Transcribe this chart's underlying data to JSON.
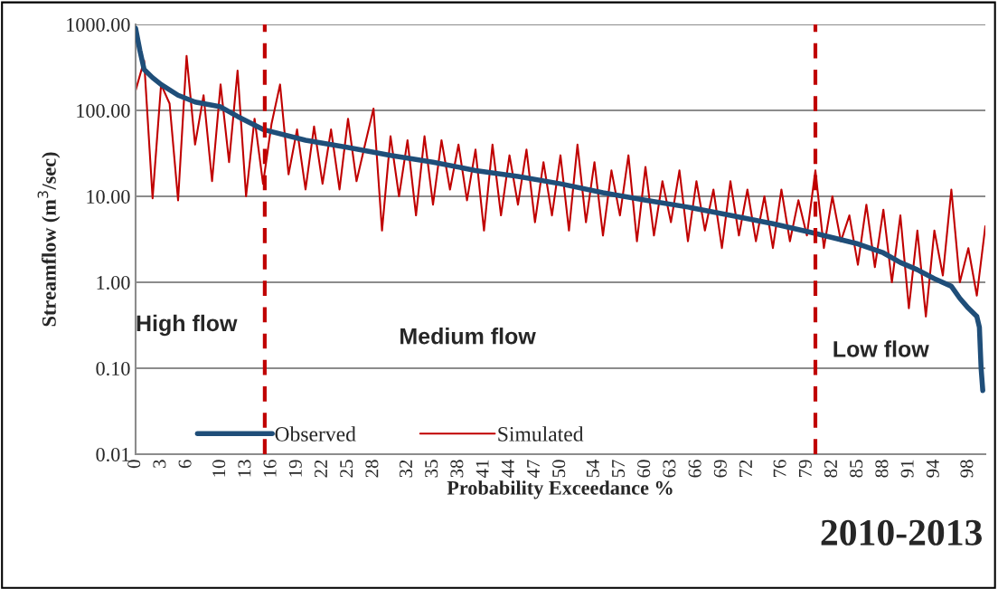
{
  "chart_data": {
    "type": "line",
    "xlabel": "Probability Exceedance %",
    "ylabel": "Streamflow (m$^{3}$/sec)",
    "log": "y",
    "grid": "y",
    "legend": "bottom",
    "xlim": [
      0,
      100
    ],
    "xticks": [
      0,
      3,
      6,
      10,
      13,
      16,
      19,
      22,
      25,
      28,
      32,
      35,
      38,
      41,
      44,
      47,
      50,
      54,
      57,
      60,
      63,
      66,
      69,
      72,
      76,
      79,
      82,
      85,
      88,
      91,
      94,
      98
    ],
    "ylim": [
      0.01,
      1000
    ],
    "yticks": [
      {
        "value": 0.01,
        "label": "0.01"
      },
      {
        "value": 0.1,
        "label": "0.10"
      },
      {
        "value": 1,
        "label": "1.00"
      },
      {
        "value": 10,
        "label": "10.00"
      },
      {
        "value": 100,
        "label": "100.00"
      },
      {
        "value": 1000,
        "label": "1000.00"
      }
    ],
    "series": [
      {
        "name": "Observed",
        "color": "#1f4e79",
        "x": [
          0,
          0.5,
          1,
          2,
          3,
          5,
          7,
          10,
          12,
          15,
          20,
          25,
          30,
          35,
          40,
          45,
          50,
          55,
          60,
          65,
          70,
          75,
          80,
          85,
          88,
          90,
          92,
          94,
          96,
          97,
          98,
          99,
          99.3,
          99.5,
          99.7
        ],
        "values": [
          900,
          500,
          300,
          240,
          200,
          150,
          125,
          110,
          85,
          60,
          45,
          37,
          30,
          25,
          20,
          17,
          14,
          11,
          9,
          7.5,
          6,
          4.8,
          3.7,
          2.8,
          2.2,
          1.7,
          1.4,
          1.1,
          0.9,
          0.65,
          0.5,
          0.4,
          0.3,
          0.1,
          0.055
        ]
      },
      {
        "name": "Simulated",
        "color": "#c00000",
        "x": [
          0,
          1,
          2,
          3,
          4,
          5,
          6,
          7,
          8,
          9,
          10,
          11,
          12,
          13,
          14,
          15,
          16,
          17,
          18,
          19,
          20,
          21,
          22,
          23,
          24,
          25,
          26,
          27,
          28,
          29,
          30,
          31,
          32,
          33,
          34,
          35,
          36,
          37,
          38,
          39,
          40,
          41,
          42,
          43,
          44,
          45,
          46,
          47,
          48,
          49,
          50,
          51,
          52,
          53,
          54,
          55,
          56,
          57,
          58,
          59,
          60,
          61,
          62,
          63,
          64,
          65,
          66,
          67,
          68,
          69,
          70,
          71,
          72,
          73,
          74,
          75,
          76,
          77,
          78,
          79,
          80,
          81,
          82,
          83,
          84,
          85,
          86,
          87,
          88,
          89,
          90,
          91,
          92,
          93,
          94,
          95,
          96,
          97,
          98,
          99,
          100
        ],
        "values": [
          170,
          380,
          9.5,
          200,
          120,
          9,
          430,
          40,
          150,
          15,
          200,
          25,
          290,
          10,
          80,
          14,
          70,
          200,
          18,
          60,
          12,
          65,
          14,
          60,
          12,
          80,
          15,
          40,
          105,
          4,
          50,
          10,
          45,
          6,
          50,
          8,
          45,
          12,
          40,
          9,
          35,
          4,
          40,
          6,
          30,
          8,
          35,
          5,
          25,
          6,
          30,
          4,
          40,
          5,
          25,
          3.5,
          20,
          6,
          30,
          3,
          22,
          3.5,
          15,
          5,
          20,
          3,
          15,
          4,
          12,
          2.5,
          15,
          3.5,
          12,
          3,
          10,
          2.5,
          12,
          3,
          9,
          3.5,
          20,
          2.5,
          10,
          3,
          6,
          1.6,
          8,
          1.5,
          7,
          1.0,
          6,
          0.5,
          4,
          0.4,
          4,
          1.2,
          12,
          1.0,
          2.5,
          0.7,
          4.5
        ]
      }
    ],
    "ref_lines": [
      {
        "axis": "x",
        "value": 15.2,
        "color": "#c00000",
        "line_style": "dashed"
      },
      {
        "axis": "x",
        "value": 80,
        "color": "#c00000",
        "line_style": "dashed"
      }
    ],
    "annotations": [
      "High flow",
      "Medium flow",
      "Low flow",
      "2010-2013"
    ]
  }
}
